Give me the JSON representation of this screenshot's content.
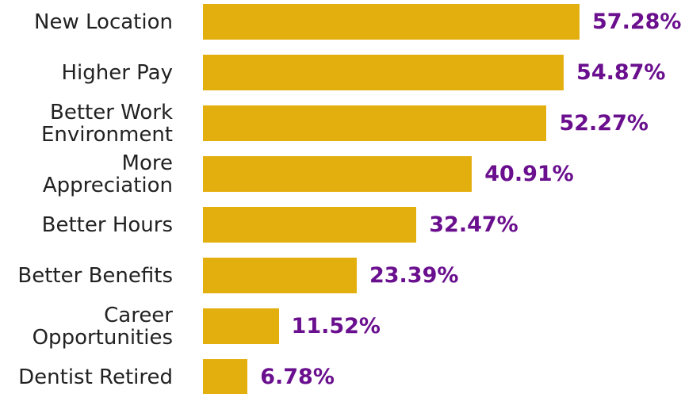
{
  "chart_data": {
    "type": "bar",
    "categories": [
      "New Location",
      "Higher Pay",
      "Better Work Environment",
      "More Appreciation",
      "Better Hours",
      "Better Benefits",
      "Career Opportunities",
      "Dentist Retired"
    ],
    "values": [
      57.28,
      54.87,
      52.27,
      40.91,
      32.47,
      23.39,
      11.52,
      6.78
    ],
    "value_labels": [
      "57.28%",
      "54.87%",
      "52.27%",
      "40.91%",
      "32.47%",
      "23.39%",
      "11.52%",
      "6.78%"
    ],
    "color": "#e3af0f",
    "label_color": "#6a0f8e"
  }
}
